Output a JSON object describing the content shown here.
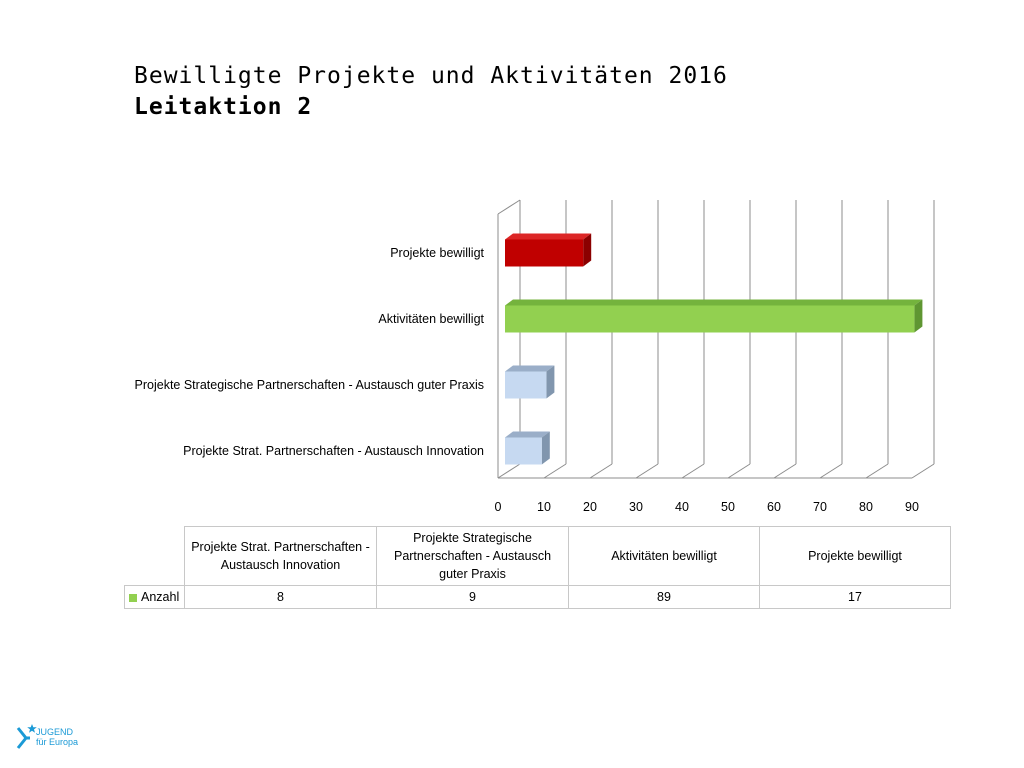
{
  "title": {
    "line1": "Bewilligte Projekte und Aktivitäten 2016",
    "line2": "Leitaktion 2"
  },
  "chart_data": {
    "type": "bar",
    "orientation": "horizontal",
    "style": "3d",
    "categories": [
      "Projekte bewilligt",
      "Aktivitäten bewilligt",
      "Projekte Strategische Partnerschaften - Austausch guter Praxis",
      "Projekte Strat. Partnerschaften - Austausch Innovation"
    ],
    "series": [
      {
        "name": "Anzahl",
        "values": [
          17,
          89,
          9,
          8
        ]
      }
    ],
    "bar_colors": [
      "#c00000",
      "#92d050",
      "#c6d9f1",
      "#c6d9f1"
    ],
    "bar_side_colors": [
      "#8b0000",
      "#5f9632",
      "#8196ae",
      "#8196ae"
    ],
    "bar_top_colors": [
      "#dc2626",
      "#74b33d",
      "#9aaec8",
      "#9aaec8"
    ],
    "xlim": [
      0,
      90
    ],
    "xticks": [
      0,
      10,
      20,
      30,
      40,
      50,
      60,
      70,
      80,
      90
    ],
    "grid": true,
    "legend": "data table below chart"
  },
  "table": {
    "headers": [
      "Projekte Strat. Partnerschaften - Austausch Innovation",
      "Projekte Strategische Partnerschaften - Austausch guter Praxis",
      "Aktivitäten bewilligt",
      "Projekte bewilligt"
    ],
    "row_label": "Anzahl",
    "row_color": "#92d050",
    "values": [
      "8",
      "9",
      "89",
      "17"
    ]
  },
  "logo": {
    "line1": "JUGEND",
    "line2": "für Europa",
    "color": "#1b9ad6"
  }
}
